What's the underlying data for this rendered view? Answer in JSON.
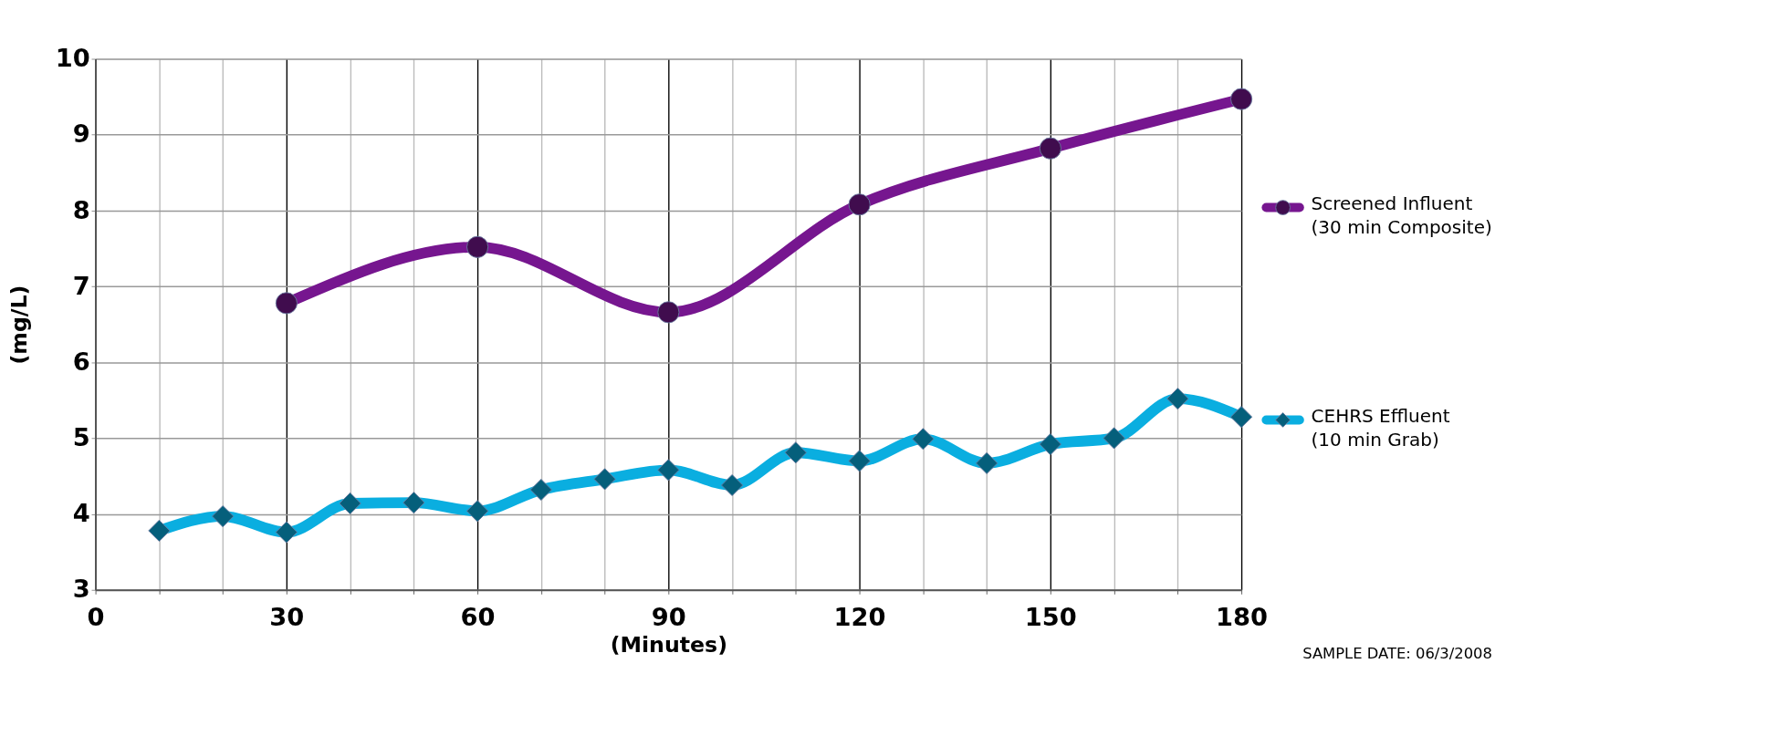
{
  "chart_data": {
    "type": "line",
    "xlabel": "(Minutes)",
    "ylabel": "(mg/L)",
    "xlim": [
      0,
      180
    ],
    "ylim": [
      3,
      10
    ],
    "xticks": [
      0,
      {
        "value": 10,
        "label": null
      },
      {
        "value": 20,
        "label": null
      },
      30,
      {
        "value": 40,
        "label": null
      },
      {
        "value": 50,
        "label": null
      },
      60,
      {
        "value": 70,
        "label": null
      },
      {
        "value": 80,
        "label": null
      },
      90,
      {
        "value": 100,
        "label": null
      },
      {
        "value": 110,
        "label": null
      },
      120,
      {
        "value": 130,
        "label": null
      },
      {
        "value": 140,
        "label": null
      },
      150,
      {
        "value": 160,
        "label": null
      },
      {
        "value": 170,
        "label": null
      },
      180
    ],
    "yticks": [
      3,
      4,
      5,
      6,
      7,
      8,
      9,
      10
    ],
    "grid": true,
    "legend": "right",
    "series": [
      {
        "name": "Screened Influent\n(30 min Composite)",
        "color": "#76168f",
        "marker": "circle",
        "x": [
          30,
          60,
          90,
          120,
          150,
          180
        ],
        "values": [
          6.78,
          7.52,
          6.66,
          8.08,
          8.82,
          9.47
        ]
      },
      {
        "name": "CEHRS Effluent\n(10 min Grab)",
        "color": "#0aaee0",
        "marker": "diamond",
        "x": [
          10,
          20,
          30,
          40,
          50,
          60,
          70,
          80,
          90,
          100,
          110,
          120,
          130,
          140,
          150,
          160,
          170,
          180
        ],
        "values": [
          3.78,
          3.97,
          3.76,
          4.14,
          4.15,
          4.04,
          4.32,
          4.46,
          4.58,
          4.38,
          4.81,
          4.7,
          4.99,
          4.67,
          4.92,
          5.0,
          5.52,
          5.28
        ]
      }
    ],
    "annotations": [
      "SAMPLE DATE: 06/3/2008"
    ]
  }
}
